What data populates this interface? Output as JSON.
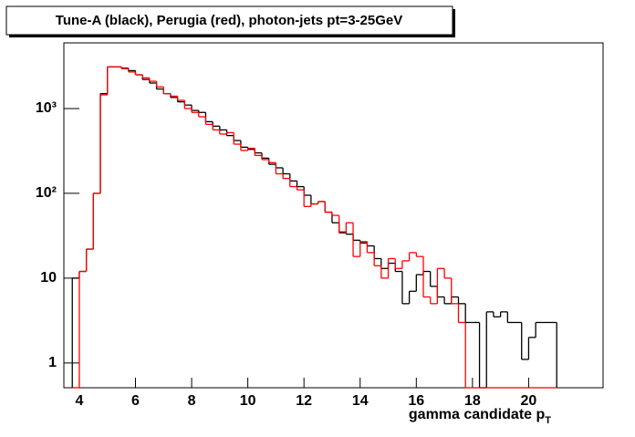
{
  "chart_data": {
    "type": "histogram",
    "title": "Tune-A (black), Perugia (red), photon-jets pt=3-25GeV",
    "x_label": "gamma candidate p",
    "x_label_subscript": "T",
    "log_y": true,
    "bins": [
      3.75,
      4,
      4.25,
      4.5,
      4.75,
      5,
      5.25,
      5.5,
      5.75,
      6,
      6.25,
      6.5,
      6.75,
      7,
      7.25,
      7.5,
      7.75,
      8,
      8.25,
      8.5,
      8.75,
      9,
      9.25,
      9.5,
      9.75,
      10,
      10.25,
      10.5,
      10.75,
      11,
      11.25,
      11.5,
      11.75,
      12,
      12.25,
      12.5,
      12.75,
      13,
      13.25,
      13.5,
      13.75,
      14,
      14.25,
      14.5,
      14.75,
      15,
      15.25,
      15.5,
      15.75,
      16,
      16.25,
      16.5,
      16.75,
      17,
      17.25,
      17.5,
      17.75,
      18,
      18.25,
      18.5,
      18.75,
      19,
      19.25,
      19.5,
      19.75,
      20,
      20.25,
      20.5,
      20.75,
      21
    ],
    "series": [
      {
        "color": "#000000",
        "values": [
          10,
          12,
          22,
          100,
          1500,
          3100,
          3100,
          3000,
          2800,
          2500,
          2200,
          2000,
          1700,
          1500,
          1350,
          1200,
          1100,
          950,
          900,
          700,
          620,
          560,
          480,
          420,
          350,
          330,
          300,
          260,
          220,
          200,
          170,
          140,
          120,
          95,
          75,
          80,
          60,
          45,
          35,
          33,
          28,
          26,
          24,
          17,
          13,
          15,
          12,
          5,
          7,
          11,
          12,
          8,
          6,
          5,
          6,
          5,
          3,
          3,
          0,
          4,
          3.5,
          4,
          3,
          3,
          1.1,
          2,
          3,
          3,
          3
        ]
      },
      {
        "color": "#ff0000",
        "values": [
          0,
          12,
          22,
          100,
          1450,
          3100,
          3100,
          2950,
          2700,
          2500,
          2300,
          2100,
          1800,
          1500,
          1400,
          1250,
          1000,
          900,
          800,
          650,
          560,
          500,
          520,
          380,
          320,
          340,
          280,
          250,
          230,
          170,
          150,
          120,
          110,
          70,
          75,
          80,
          60,
          55,
          34,
          45,
          18,
          27,
          20,
          14,
          10,
          17,
          13,
          16,
          20,
          18,
          6,
          5,
          13,
          10,
          5,
          3,
          0,
          0,
          0,
          0,
          0,
          0,
          0,
          0,
          0,
          0,
          0,
          0,
          0
        ]
      }
    ],
    "xlim": [
      3.45,
      22.65
    ],
    "xticks": [
      4,
      6,
      8,
      10,
      12,
      14,
      16,
      18,
      20
    ],
    "ylim": [
      0.51,
      5950
    ],
    "yticks": [
      1,
      10,
      {
        "value": 100,
        "label": "10²"
      },
      {
        "value": 1000,
        "label": "10³"
      }
    ]
  }
}
